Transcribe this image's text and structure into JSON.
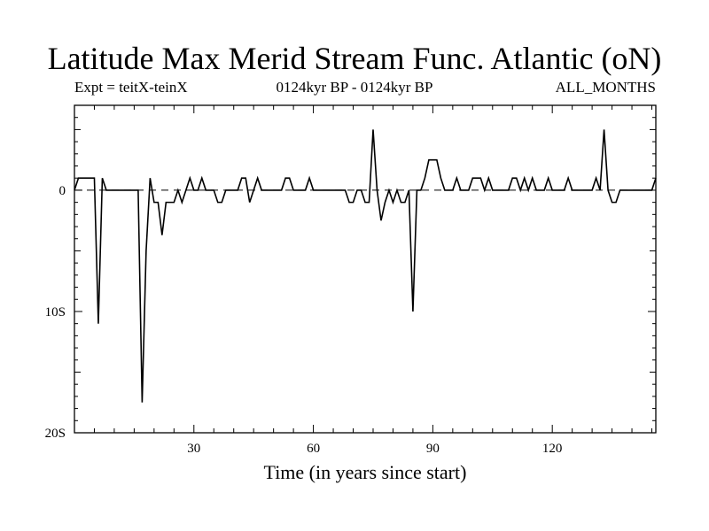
{
  "chart_data": {
    "type": "line",
    "title": "Latitude Max Merid Stream Func. Atlantic (oN)",
    "subtitle_left": "Expt = teitX-teinX",
    "subtitle_center": "0124kyr BP - 0124kyr BP",
    "subtitle_right": "ALL_MONTHS",
    "xlabel": "Time (in years since start)",
    "ylabel": "",
    "xlim": [
      0,
      146
    ],
    "ylim": [
      -20,
      7
    ],
    "xticks": [
      30,
      60,
      90,
      120
    ],
    "yticks": [
      {
        "value": 0,
        "label": "0"
      },
      {
        "value": -10,
        "label": "10S"
      },
      {
        "value": -20,
        "label": "20S"
      }
    ],
    "zero_line": "dashed",
    "grid": false,
    "series": [
      {
        "name": "",
        "points": [
          [
            0,
            0
          ],
          [
            1,
            1
          ],
          [
            2,
            1
          ],
          [
            3,
            1
          ],
          [
            4,
            1
          ],
          [
            5,
            1
          ],
          [
            6,
            -11
          ],
          [
            7,
            1
          ],
          [
            8,
            0
          ],
          [
            9,
            0
          ],
          [
            10,
            0
          ],
          [
            11,
            0
          ],
          [
            12,
            0
          ],
          [
            13,
            0
          ],
          [
            14,
            0
          ],
          [
            15,
            0
          ],
          [
            16,
            0
          ],
          [
            17,
            -17.5
          ],
          [
            18,
            -5
          ],
          [
            19,
            1
          ],
          [
            20,
            -1
          ],
          [
            21,
            -1
          ],
          [
            22,
            -3.7
          ],
          [
            23,
            -1
          ],
          [
            24,
            -1
          ],
          [
            25,
            -1
          ],
          [
            26,
            0
          ],
          [
            27,
            -1
          ],
          [
            28,
            0
          ],
          [
            29,
            1
          ],
          [
            30,
            0
          ],
          [
            31,
            0
          ],
          [
            32,
            1
          ],
          [
            33,
            0
          ],
          [
            34,
            0
          ],
          [
            35,
            0
          ],
          [
            36,
            -1
          ],
          [
            37,
            -1
          ],
          [
            38,
            0
          ],
          [
            39,
            0
          ],
          [
            40,
            0
          ],
          [
            41,
            0
          ],
          [
            42,
            1
          ],
          [
            43,
            1
          ],
          [
            44,
            -1
          ],
          [
            45,
            0
          ],
          [
            46,
            1
          ],
          [
            47,
            0
          ],
          [
            48,
            0
          ],
          [
            49,
            0
          ],
          [
            50,
            0
          ],
          [
            51,
            0
          ],
          [
            52,
            0
          ],
          [
            53,
            1
          ],
          [
            54,
            1
          ],
          [
            55,
            0
          ],
          [
            56,
            0
          ],
          [
            57,
            0
          ],
          [
            58,
            0
          ],
          [
            59,
            1
          ],
          [
            60,
            0
          ],
          [
            61,
            0
          ],
          [
            62,
            0
          ],
          [
            63,
            0
          ],
          [
            64,
            0
          ],
          [
            65,
            0
          ],
          [
            66,
            0
          ],
          [
            67,
            0
          ],
          [
            68,
            0
          ],
          [
            69,
            -1
          ],
          [
            70,
            -1
          ],
          [
            71,
            0
          ],
          [
            72,
            0
          ],
          [
            73,
            -1
          ],
          [
            74,
            -1
          ],
          [
            75,
            5
          ],
          [
            76,
            0
          ],
          [
            77,
            -2.5
          ],
          [
            78,
            -1
          ],
          [
            79,
            0
          ],
          [
            80,
            -1
          ],
          [
            81,
            0
          ],
          [
            82,
            -1
          ],
          [
            83,
            -1
          ],
          [
            84,
            0
          ],
          [
            85,
            -10
          ],
          [
            86,
            0
          ],
          [
            87,
            0
          ],
          [
            88,
            1
          ],
          [
            89,
            2.5
          ],
          [
            90,
            2.5
          ],
          [
            91,
            2.5
          ],
          [
            92,
            1
          ],
          [
            93,
            0
          ],
          [
            94,
            0
          ],
          [
            95,
            0
          ],
          [
            96,
            1
          ],
          [
            97,
            0
          ],
          [
            98,
            0
          ],
          [
            99,
            0
          ],
          [
            100,
            1
          ],
          [
            101,
            1
          ],
          [
            102,
            1
          ],
          [
            103,
            0
          ],
          [
            104,
            1
          ],
          [
            105,
            0
          ],
          [
            106,
            0
          ],
          [
            107,
            0
          ],
          [
            108,
            0
          ],
          [
            109,
            0
          ],
          [
            110,
            1
          ],
          [
            111,
            1
          ],
          [
            112,
            0
          ],
          [
            113,
            1
          ],
          [
            114,
            0
          ],
          [
            115,
            1
          ],
          [
            116,
            0
          ],
          [
            117,
            0
          ],
          [
            118,
            0
          ],
          [
            119,
            1
          ],
          [
            120,
            0
          ],
          [
            121,
            0
          ],
          [
            122,
            0
          ],
          [
            123,
            0
          ],
          [
            124,
            1
          ],
          [
            125,
            0
          ],
          [
            126,
            0
          ],
          [
            127,
            0
          ],
          [
            128,
            0
          ],
          [
            129,
            0
          ],
          [
            130,
            0
          ],
          [
            131,
            1
          ],
          [
            132,
            0
          ],
          [
            133,
            5
          ],
          [
            134,
            0
          ],
          [
            135,
            -1
          ],
          [
            136,
            -1
          ],
          [
            137,
            0
          ],
          [
            138,
            0
          ],
          [
            139,
            0
          ],
          [
            140,
            0
          ],
          [
            141,
            0
          ],
          [
            142,
            0
          ],
          [
            143,
            0
          ],
          [
            144,
            0
          ],
          [
            145,
            0
          ],
          [
            146,
            1
          ]
        ]
      }
    ]
  }
}
